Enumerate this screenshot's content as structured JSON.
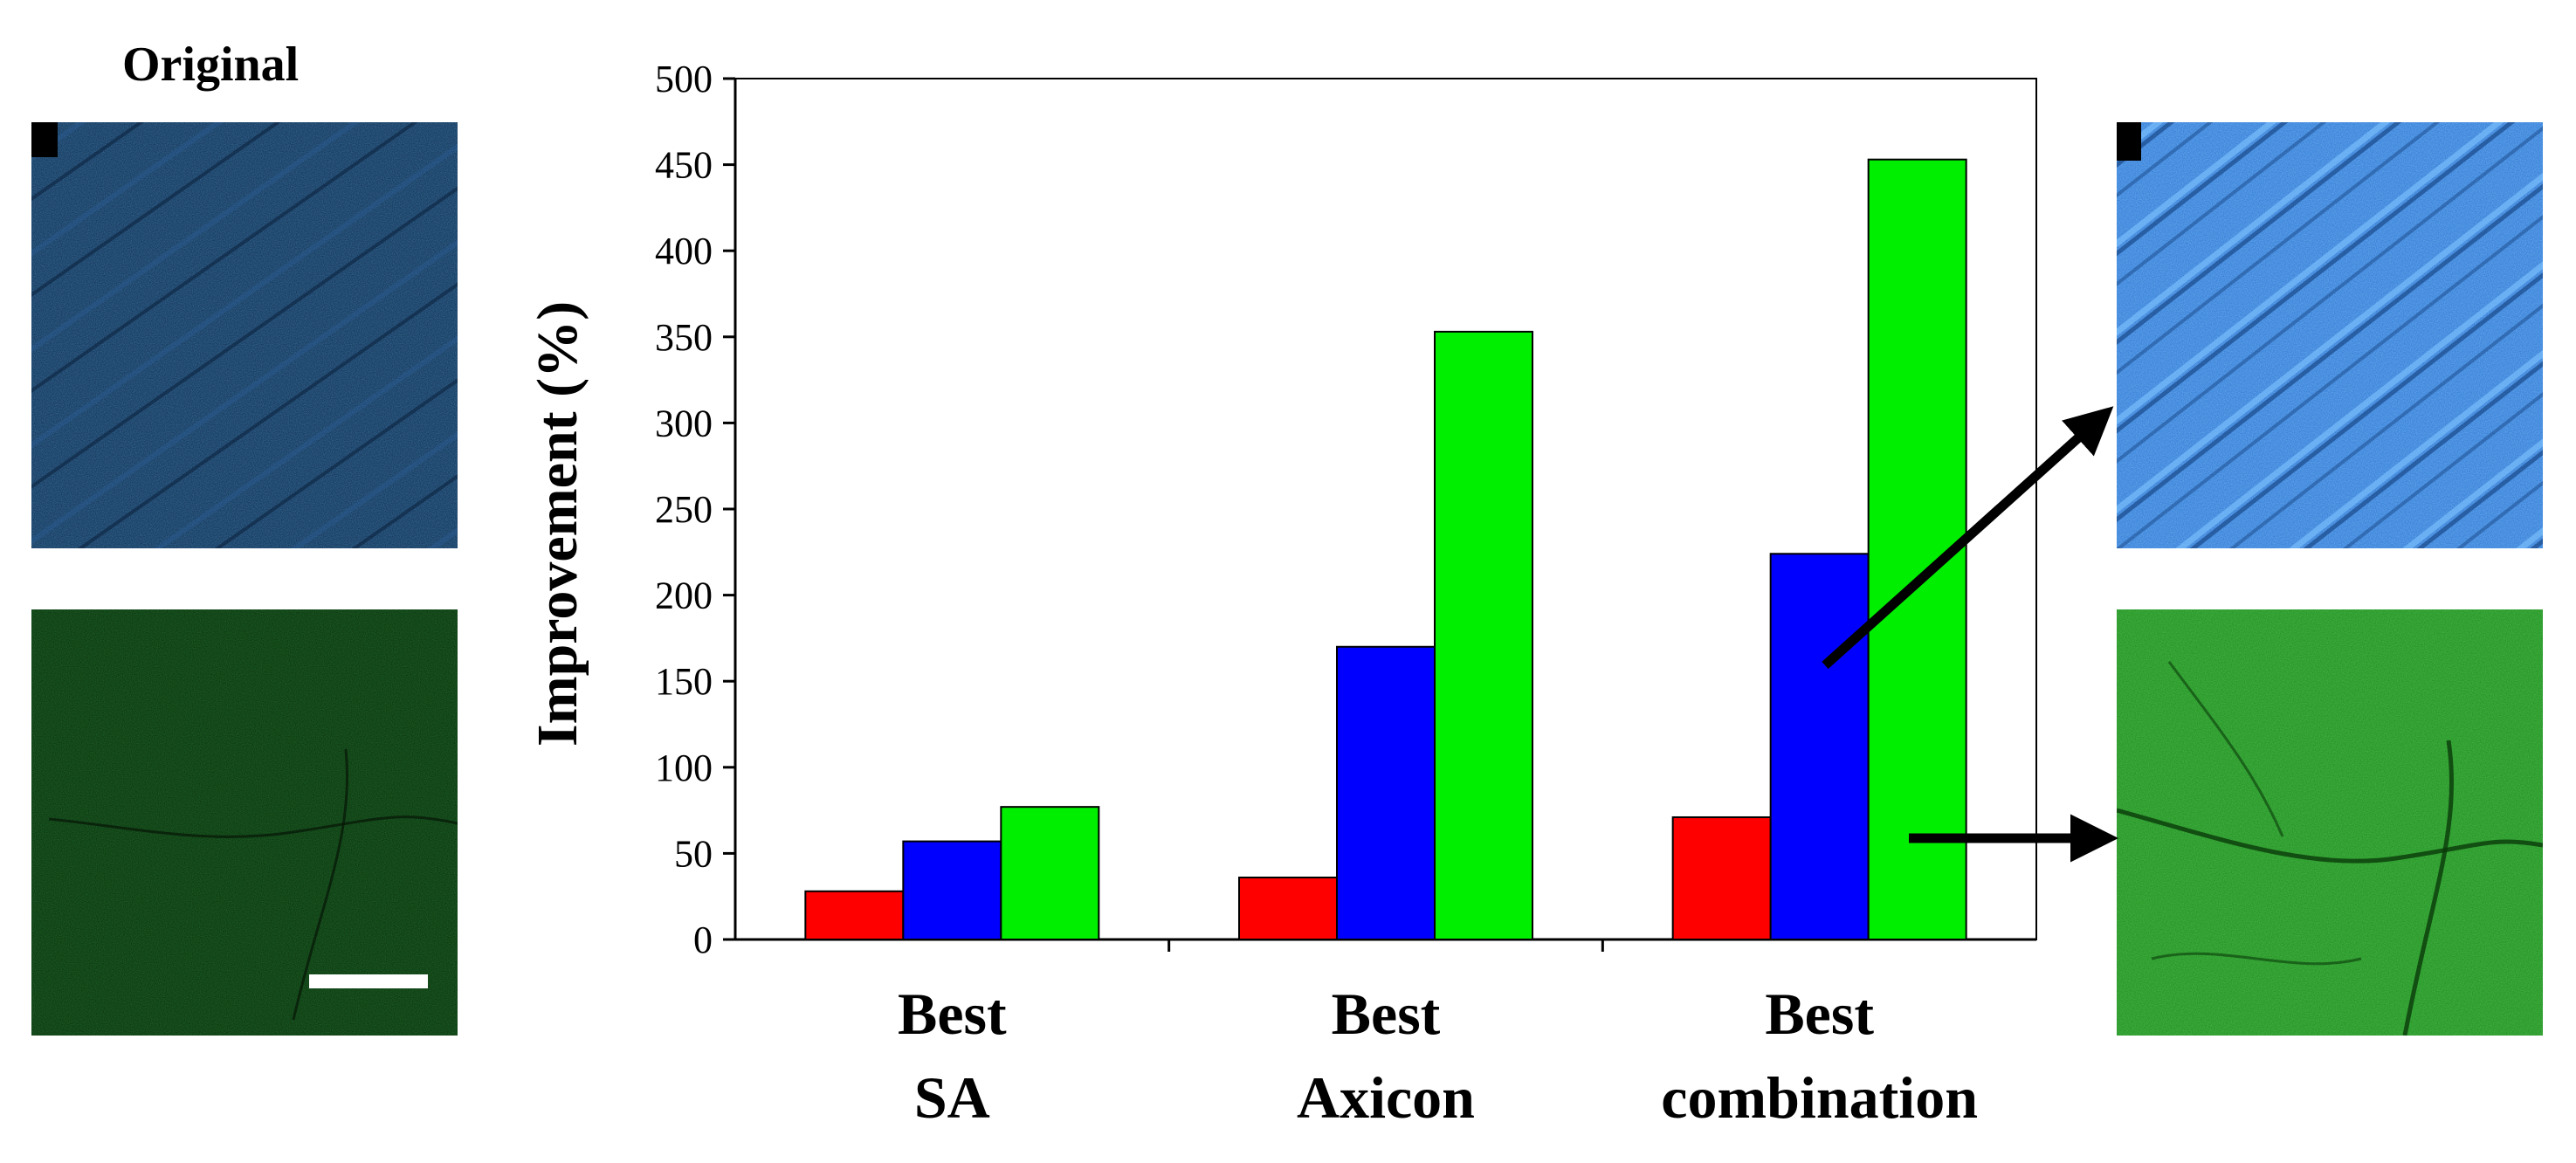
{
  "figure": {
    "original_label": "Original"
  },
  "colors": {
    "red": "#ff0000",
    "blue": "#0000ff",
    "green": "#00ee00",
    "blue_image": "#2f7fe0",
    "green_image": "#1f9a1f"
  },
  "chart_data": {
    "type": "bar",
    "title": "",
    "ylabel": "Improvement (%)",
    "xlabel": "",
    "ylim": [
      0,
      500
    ],
    "yticks": [
      0,
      50,
      100,
      150,
      200,
      250,
      300,
      350,
      400,
      450,
      500
    ],
    "categories": [
      [
        "Best",
        "SA"
      ],
      [
        "Best",
        "Axicon"
      ],
      [
        "Best",
        "combination"
      ]
    ],
    "series": [
      {
        "color": "#ff0000",
        "values": [
          28,
          36,
          71
        ]
      },
      {
        "color": "#0000ff",
        "values": [
          57,
          170,
          224
        ]
      },
      {
        "color": "#00ee00",
        "values": [
          77,
          353,
          453
        ]
      }
    ],
    "grid": false,
    "legend": "none"
  }
}
